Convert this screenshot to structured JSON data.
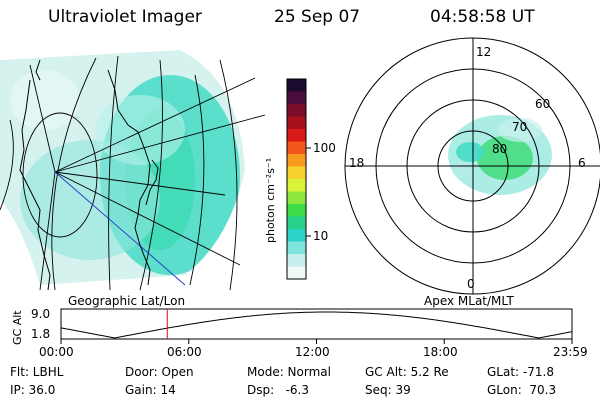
{
  "header": {
    "title": "Ultraviolet Imager",
    "date": "25 Sep 07",
    "time": "04:58:58 UT"
  },
  "colorbar": {
    "label": "photon cm⁻²s⁻¹",
    "ticks": [
      "100",
      "10"
    ],
    "colors": [
      "#1a0a2e",
      "#4a0e3c",
      "#7a0e2a",
      "#a8101a",
      "#d81a18",
      "#f2561a",
      "#f79a1e",
      "#f7d22e",
      "#d9f23a",
      "#8ce83e",
      "#3fdc4a",
      "#28d28a",
      "#2ed3c8",
      "#7fe4dd",
      "#c5efec",
      "#eef9f8"
    ]
  },
  "geographic_map": {
    "label": "Geographic Lat/Lon"
  },
  "polar_plot": {
    "label": "Apex MLat/MLT",
    "mlt_labels": [
      "12",
      "18",
      "6",
      "0"
    ],
    "lat_labels": [
      "60",
      "70",
      "80"
    ]
  },
  "timeline": {
    "axis_title": "GC Alt",
    "y_ticks": [
      "9.0",
      "1.8"
    ],
    "x_ticks": [
      "00:00",
      "06:00",
      "12:00",
      "18:00",
      "23:59"
    ],
    "current_time_fraction": 0.208,
    "marker_color": "#e01010"
  },
  "info": {
    "flt": "Flt: LBHL",
    "ip": "IP: 36.0",
    "door": "Door: Open",
    "gain": "Gain: 14",
    "mode": "Mode: Normal",
    "dsp": "Dsp:   -6.3",
    "gc_alt": "GC Alt: 5.2 Re",
    "seq": "Seq: 39",
    "glat": "GLat: -71.8",
    "glon": "GLon:  70.3"
  }
}
